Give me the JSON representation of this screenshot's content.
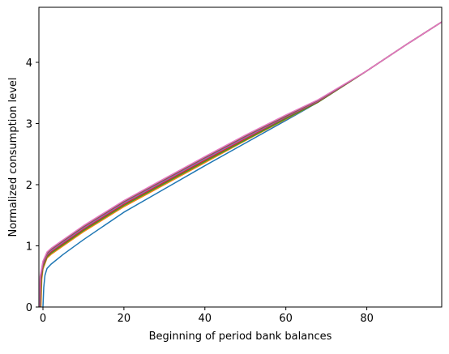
{
  "chart_data": {
    "type": "line",
    "title": "",
    "xlabel": "Beginning of period bank balances",
    "ylabel": "Normalized consumption level",
    "xlim": [
      -1,
      98.5
    ],
    "ylim": [
      0,
      4.9
    ],
    "xticks": [
      0,
      20,
      40,
      60,
      80
    ],
    "yticks": [
      0,
      1,
      2,
      3,
      4
    ],
    "grid": false,
    "legend": "none",
    "series": [
      {
        "color": "#1f77b4",
        "points": [
          [
            0.0,
            0.0
          ],
          [
            0.2,
            0.32
          ],
          [
            0.5,
            0.52
          ],
          [
            1.0,
            0.63
          ],
          [
            2.0,
            0.7
          ],
          [
            5.0,
            0.86
          ],
          [
            10.0,
            1.1
          ],
          [
            20.0,
            1.55
          ],
          [
            30.0,
            1.93
          ],
          [
            40.0,
            2.31
          ],
          [
            50.0,
            2.68
          ],
          [
            60.0,
            3.05
          ],
          [
            68.0,
            3.35
          ],
          [
            80.0,
            3.86
          ],
          [
            90.0,
            4.3
          ],
          [
            98.5,
            4.66
          ]
        ]
      },
      {
        "color": "#ff7f0e",
        "points": [
          [
            -0.5,
            0.0
          ],
          [
            -0.3,
            0.45
          ],
          [
            0.0,
            0.62
          ],
          [
            1.0,
            0.8
          ],
          [
            2.0,
            0.86
          ],
          [
            5.0,
            1.0
          ],
          [
            10.0,
            1.23
          ],
          [
            20.0,
            1.64
          ],
          [
            30.0,
            2.0
          ],
          [
            40.0,
            2.36
          ],
          [
            50.0,
            2.72
          ],
          [
            60.0,
            3.07
          ],
          [
            68.0,
            3.35
          ],
          [
            80.0,
            3.86
          ],
          [
            90.0,
            4.3
          ],
          [
            98.5,
            4.66
          ]
        ]
      },
      {
        "color": "#2ca02c",
        "points": [
          [
            -0.6,
            0.0
          ],
          [
            -0.4,
            0.46
          ],
          [
            0.0,
            0.65
          ],
          [
            1.0,
            0.82
          ],
          [
            2.0,
            0.88
          ],
          [
            5.0,
            1.02
          ],
          [
            10.0,
            1.25
          ],
          [
            20.0,
            1.66
          ],
          [
            30.0,
            2.02
          ],
          [
            40.0,
            2.38
          ],
          [
            50.0,
            2.73
          ],
          [
            60.0,
            3.08
          ],
          [
            68.0,
            3.35
          ],
          [
            80.0,
            3.86
          ],
          [
            90.0,
            4.3
          ],
          [
            98.5,
            4.66
          ]
        ]
      },
      {
        "color": "#d62728",
        "points": [
          [
            -0.7,
            0.0
          ],
          [
            -0.5,
            0.47
          ],
          [
            0.0,
            0.68
          ],
          [
            1.0,
            0.84
          ],
          [
            2.0,
            0.9
          ],
          [
            5.0,
            1.04
          ],
          [
            10.0,
            1.27
          ],
          [
            20.0,
            1.68
          ],
          [
            30.0,
            2.04
          ],
          [
            40.0,
            2.4
          ],
          [
            50.0,
            2.75
          ],
          [
            60.0,
            3.1
          ],
          [
            68.0,
            3.36
          ],
          [
            80.0,
            3.86
          ],
          [
            90.0,
            4.3
          ],
          [
            98.5,
            4.66
          ]
        ]
      },
      {
        "color": "#9467bd",
        "points": [
          [
            -0.8,
            0.0
          ],
          [
            -0.6,
            0.48
          ],
          [
            0.0,
            0.71
          ],
          [
            1.0,
            0.86
          ],
          [
            2.0,
            0.92
          ],
          [
            5.0,
            1.06
          ],
          [
            10.0,
            1.29
          ],
          [
            20.0,
            1.7
          ],
          [
            30.0,
            2.06
          ],
          [
            40.0,
            2.42
          ],
          [
            50.0,
            2.77
          ],
          [
            60.0,
            3.11
          ],
          [
            68.0,
            3.37
          ],
          [
            80.0,
            3.86
          ],
          [
            90.0,
            4.3
          ],
          [
            98.5,
            4.66
          ]
        ]
      },
      {
        "color": "#8c564b",
        "points": [
          [
            -0.85,
            0.0
          ],
          [
            -0.65,
            0.49
          ],
          [
            0.0,
            0.73
          ],
          [
            1.0,
            0.88
          ],
          [
            2.0,
            0.94
          ],
          [
            5.0,
            1.08
          ],
          [
            10.0,
            1.31
          ],
          [
            20.0,
            1.72
          ],
          [
            30.0,
            2.08
          ],
          [
            40.0,
            2.44
          ],
          [
            50.0,
            2.79
          ],
          [
            60.0,
            3.12
          ],
          [
            68.0,
            3.38
          ],
          [
            80.0,
            3.86
          ],
          [
            90.0,
            4.3
          ],
          [
            98.5,
            4.66
          ]
        ]
      },
      {
        "color": "#e377c2",
        "points": [
          [
            -0.9,
            0.0
          ],
          [
            -0.7,
            0.5
          ],
          [
            0.0,
            0.75
          ],
          [
            1.0,
            0.9
          ],
          [
            2.0,
            0.96
          ],
          [
            5.0,
            1.1
          ],
          [
            10.0,
            1.33
          ],
          [
            20.0,
            1.74
          ],
          [
            30.0,
            2.1
          ],
          [
            40.0,
            2.46
          ],
          [
            50.0,
            2.81
          ],
          [
            60.0,
            3.14
          ],
          [
            68.0,
            3.39
          ],
          [
            80.0,
            3.86
          ],
          [
            90.0,
            4.3
          ],
          [
            98.5,
            4.66
          ]
        ]
      }
    ]
  }
}
